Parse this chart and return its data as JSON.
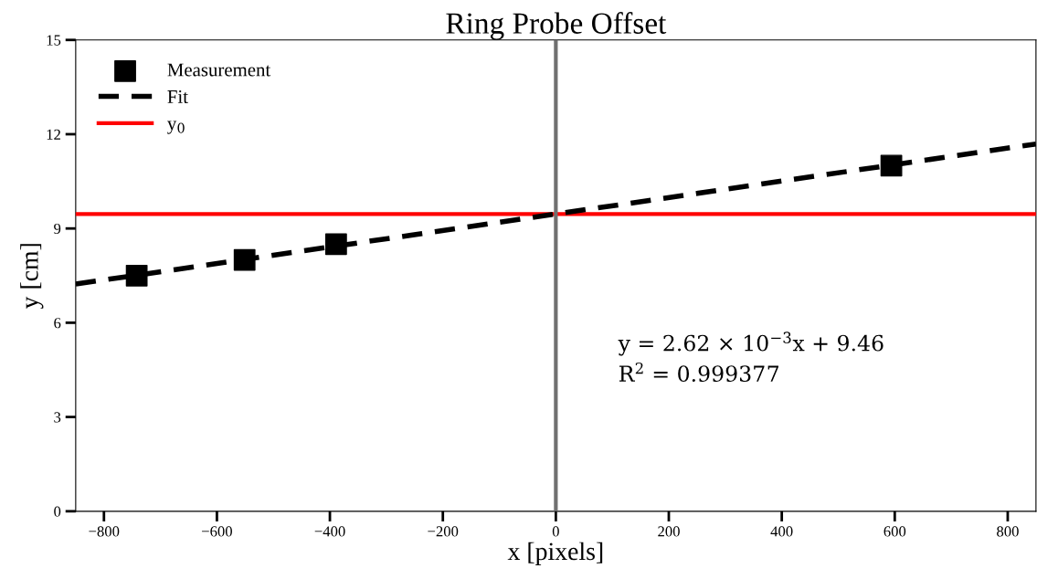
{
  "chart_data": {
    "type": "scatter",
    "title": "Ring Probe Offset",
    "xlabel": "x [pixels]",
    "ylabel": "y [cm]",
    "xlim": [
      -850,
      850
    ],
    "xticks": [
      {
        "value": -800,
        "label": "−800"
      },
      {
        "value": -600,
        "label": "−600"
      },
      {
        "value": -400,
        "label": "−400"
      },
      {
        "value": -200,
        "label": "−200"
      },
      0,
      200,
      400,
      600,
      800
    ],
    "ylim": [
      0,
      15
    ],
    "yticks": [
      0,
      3,
      6,
      9,
      12,
      15
    ],
    "series": [
      {
        "name": "Measurement",
        "marker": "square",
        "color": "#000000",
        "x": [
          -742,
          -551,
          -389,
          594
        ],
        "values": [
          7.5,
          8.0,
          8.5,
          11.0
        ]
      },
      {
        "name": "Fit",
        "type": "line",
        "line_style": "dashed",
        "color": "#000000",
        "x": [
          -850,
          850
        ],
        "values": [
          7.23,
          11.69
        ]
      }
    ],
    "ref_lines": [
      {
        "axis": "y",
        "value": 9.46,
        "label": "y$_{0}$",
        "color": "#ff0000",
        "line_style": "solid"
      },
      {
        "axis": "x",
        "value": 0,
        "color": "#707070",
        "line_style": "solid"
      }
    ],
    "annotations": [
      "y = 2.62 × 10$^{−3}$x + 9.46",
      "R$^{2}$ = 0.999377"
    ],
    "legend": "top left",
    "grid": false
  }
}
